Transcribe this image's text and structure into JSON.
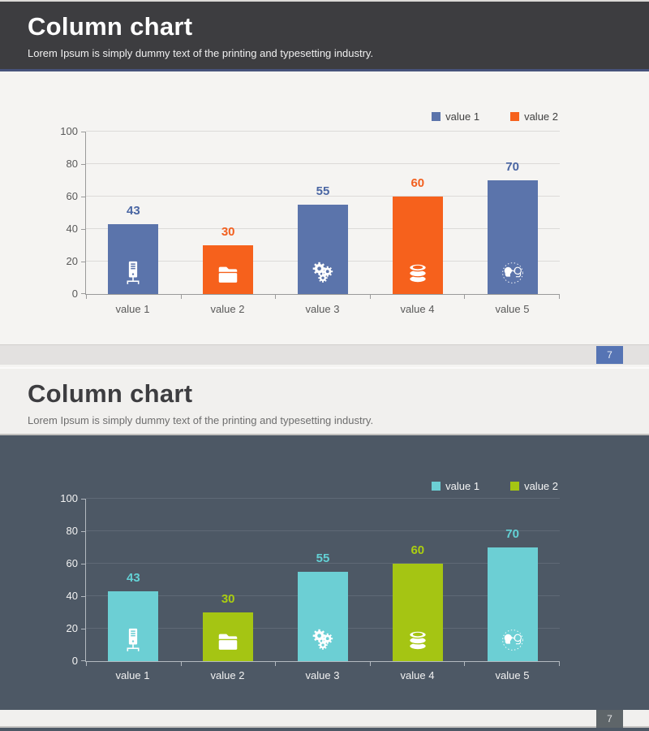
{
  "slides": [
    {
      "title": "Column chart",
      "subtitle": "Lorem Ipsum is simply dummy text of the printing and typesetting industry.",
      "page_number": "7"
    },
    {
      "title": "Column chart",
      "subtitle": "Lorem Ipsum is simply dummy text of the printing and typesetting industry.",
      "page_number": "7"
    }
  ],
  "chart_data": [
    {
      "type": "bar",
      "title": "",
      "categories": [
        "value 1",
        "value 2",
        "value 3",
        "value 4",
        "value 5"
      ],
      "values": [
        43,
        30,
        55,
        60,
        70
      ],
      "ylim": [
        0,
        100
      ],
      "yticks": [
        0,
        20,
        40,
        60,
        80,
        100
      ],
      "grid": true,
      "legend_position": "top-right",
      "legend": [
        {
          "label": "value 1",
          "color": "#5b74ab"
        },
        {
          "label": "value 2",
          "color": "#f6611c"
        }
      ],
      "bar_colors": [
        "#5b74ab",
        "#f6611c",
        "#5b74ab",
        "#f6611c",
        "#5b74ab"
      ],
      "value_label_colors": [
        "#4a66a3",
        "#f25f1e",
        "#4a66a3",
        "#f25f1e",
        "#4a66a3"
      ],
      "icons": [
        "server",
        "folder",
        "gears",
        "database",
        "discussion"
      ],
      "colors": {
        "grid": "#dcdad8",
        "axis": "#9a9a9a",
        "tick_text": "#595959"
      }
    },
    {
      "type": "bar",
      "title": "",
      "categories": [
        "value 1",
        "value 2",
        "value 3",
        "value 4",
        "value 5"
      ],
      "values": [
        43,
        30,
        55,
        60,
        70
      ],
      "ylim": [
        0,
        100
      ],
      "yticks": [
        0,
        20,
        40,
        60,
        80,
        100
      ],
      "grid": true,
      "legend_position": "top-right",
      "legend": [
        {
          "label": "value 1",
          "color": "#6ccfd4"
        },
        {
          "label": "value 2",
          "color": "#a5c513"
        }
      ],
      "bar_colors": [
        "#6ccfd4",
        "#a5c513",
        "#6ccfd4",
        "#a5c513",
        "#6ccfd4"
      ],
      "value_label_colors": [
        "#63d1d5",
        "#abce10",
        "#63d1d5",
        "#abce10",
        "#63d1d5"
      ],
      "icons": [
        "server",
        "folder",
        "gears",
        "database",
        "discussion"
      ],
      "colors": {
        "grid": "#5f6976",
        "axis": "#b3b9c0",
        "tick_text": "#f2f2f2"
      }
    }
  ],
  "theme": {
    "slide1": {
      "header_bg": "#3d3d40",
      "header_accent": "#46527b",
      "chart_bg": "#f5f4f2",
      "footer_bg": "#e3e1e0",
      "page_box": "#5674b4",
      "title_color": "#ffffff",
      "subtitle_color": "#efefef"
    },
    "slide2": {
      "header_bg": "#f1f0ee",
      "chart_bg": "#4d5865",
      "footer_bg": "#f1f0ee",
      "page_box": "#5e6569",
      "title_color": "#3d3d40",
      "subtitle_color": "#6e6e6e"
    }
  }
}
